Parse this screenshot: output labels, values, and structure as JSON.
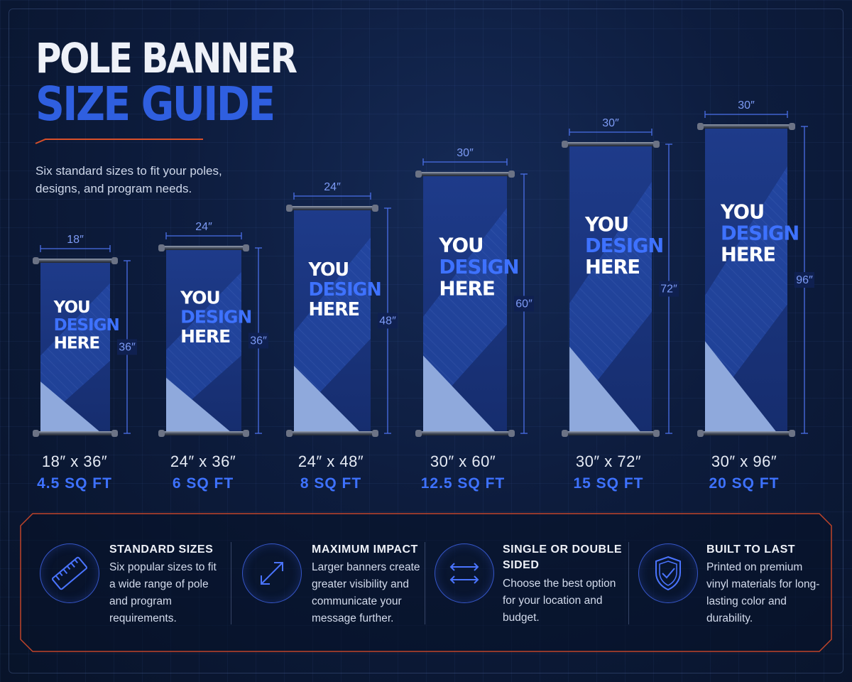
{
  "title": {
    "line1": "POLE BANNER",
    "line2": "SIZE GUIDE"
  },
  "subtitle": "Six standard sizes to fit your poles, designs, and program needs.",
  "banner_text": {
    "line1": "YOU",
    "line2": "DESIGN",
    "line3": "HERE"
  },
  "colors": {
    "background": "#0b1730",
    "accent_blue": "#2f5fe0",
    "label_blue": "#3e72ff",
    "accent_orange": "#d9502a",
    "banner_dark": "#1a3680",
    "banner_light": "#8fa9dc"
  },
  "banners": [
    {
      "width_label": "18″",
      "height_label": "36″",
      "size": "18″ x 36″",
      "sqft": "4.5 SQ FT"
    },
    {
      "width_label": "24″",
      "height_label": "36″",
      "size": "24″ x 36″",
      "sqft": "6 SQ FT"
    },
    {
      "width_label": "24″",
      "height_label": "48″",
      "size": "24″ x 48″",
      "sqft": "8 SQ FT"
    },
    {
      "width_label": "30″",
      "height_label": "60″",
      "size": "30″ x 60″",
      "sqft": "12.5 SQ FT"
    },
    {
      "width_label": "30″",
      "height_label": "72″",
      "size": "30″ x 72″",
      "sqft": "15 SQ FT"
    },
    {
      "width_label": "30″",
      "height_label": "96″",
      "size": "30″ x 96″",
      "sqft": "20 SQ FT"
    }
  ],
  "features": [
    {
      "icon": "ruler-icon",
      "title": "STANDARD SIZES",
      "text": "Six popular sizes to fit a wide range of pole and program requirements."
    },
    {
      "icon": "diagonal-arrows-icon",
      "title": "MAXIMUM IMPACT",
      "text": "Larger banners create greater visibility and communicate your message further."
    },
    {
      "icon": "swap-arrows-icon",
      "title": "SINGLE OR DOUBLE SIDED",
      "text": "Choose the best option for your location and budget."
    },
    {
      "icon": "shield-icon",
      "title": "BUILT TO LAST",
      "text": "Printed on premium vinyl materials for long-lasting color and durability."
    }
  ]
}
